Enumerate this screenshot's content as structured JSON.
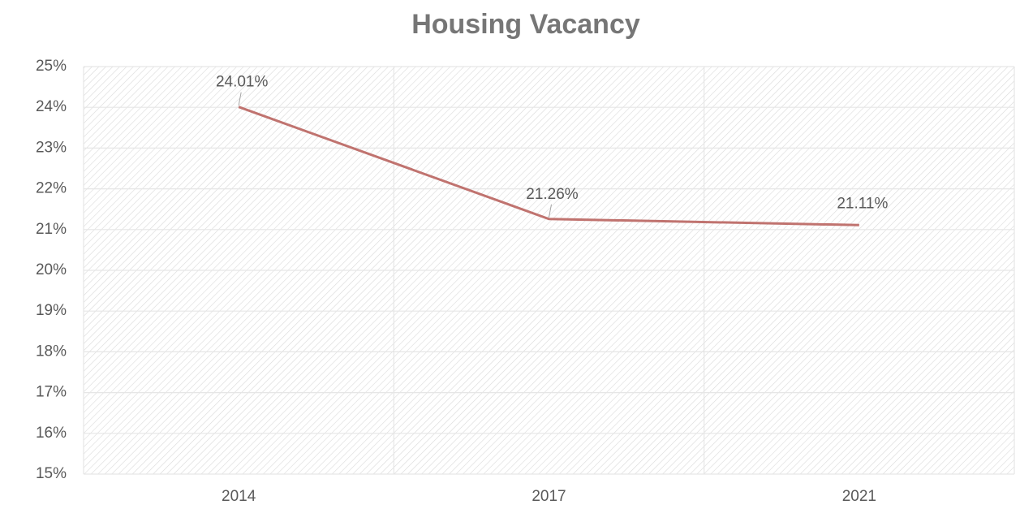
{
  "chart_data": {
    "type": "line",
    "title": "Housing Vacancy",
    "categories": [
      "2014",
      "2017",
      "2021"
    ],
    "values": [
      24.01,
      21.26,
      21.11
    ],
    "value_labels": [
      "24.01%",
      "21.26%",
      "21.11%"
    ],
    "color": "#c0736f",
    "ylim": [
      15,
      25
    ],
    "yticks": [
      {
        "value": 15,
        "label": "15%"
      },
      {
        "value": 16,
        "label": "16%"
      },
      {
        "value": 17,
        "label": "17%"
      },
      {
        "value": 18,
        "label": "18%"
      },
      {
        "value": 19,
        "label": "19%"
      },
      {
        "value": 20,
        "label": "20%"
      },
      {
        "value": 21,
        "label": "21%"
      },
      {
        "value": 22,
        "label": "22%"
      },
      {
        "value": 23,
        "label": "23%"
      },
      {
        "value": 24,
        "label": "24%"
      },
      {
        "value": 25,
        "label": "25%"
      }
    ],
    "grid": true
  }
}
